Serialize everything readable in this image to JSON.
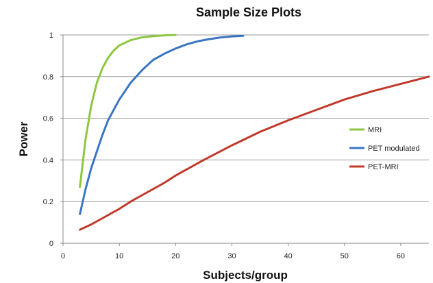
{
  "chart_data": {
    "type": "line",
    "title": "Sample Size Plots",
    "xlabel": "Subjects/group",
    "ylabel": "Power",
    "xlim": [
      0,
      65
    ],
    "ylim": [
      0,
      1
    ],
    "x_ticks": [
      0,
      10,
      20,
      30,
      40,
      50,
      60
    ],
    "y_ticks": [
      0,
      0.2,
      0.4,
      0.6,
      0.8,
      1
    ],
    "grid": "horizontal",
    "legend_position": "right",
    "series": [
      {
        "name": "MRI",
        "color": "#8dc63f",
        "points": [
          [
            3,
            0.27
          ],
          [
            4,
            0.5
          ],
          [
            5,
            0.66
          ],
          [
            6,
            0.77
          ],
          [
            7,
            0.84
          ],
          [
            8,
            0.89
          ],
          [
            9,
            0.925
          ],
          [
            10,
            0.95
          ],
          [
            12,
            0.975
          ],
          [
            14,
            0.988
          ],
          [
            16,
            0.994
          ],
          [
            18,
            0.998
          ],
          [
            20,
            1.0
          ]
        ]
      },
      {
        "name": "PET modulated",
        "color": "#3a75c4",
        "points": [
          [
            3,
            0.14
          ],
          [
            4,
            0.26
          ],
          [
            5,
            0.36
          ],
          [
            6,
            0.44
          ],
          [
            7,
            0.52
          ],
          [
            8,
            0.59
          ],
          [
            9,
            0.64
          ],
          [
            10,
            0.69
          ],
          [
            12,
            0.77
          ],
          [
            14,
            0.83
          ],
          [
            16,
            0.88
          ],
          [
            18,
            0.91
          ],
          [
            20,
            0.935
          ],
          [
            22,
            0.955
          ],
          [
            24,
            0.97
          ],
          [
            26,
            0.98
          ],
          [
            28,
            0.988
          ],
          [
            30,
            0.993
          ],
          [
            32,
            0.996
          ]
        ]
      },
      {
        "name": "PET-MRI",
        "color": "#c0392b",
        "points": [
          [
            3,
            0.065
          ],
          [
            5,
            0.09
          ],
          [
            7,
            0.12
          ],
          [
            10,
            0.165
          ],
          [
            12,
            0.2
          ],
          [
            15,
            0.245
          ],
          [
            18,
            0.29
          ],
          [
            20,
            0.325
          ],
          [
            25,
            0.4
          ],
          [
            30,
            0.47
          ],
          [
            35,
            0.535
          ],
          [
            40,
            0.59
          ],
          [
            45,
            0.64
          ],
          [
            50,
            0.69
          ],
          [
            55,
            0.73
          ],
          [
            60,
            0.765
          ],
          [
            65,
            0.8
          ]
        ]
      }
    ]
  }
}
